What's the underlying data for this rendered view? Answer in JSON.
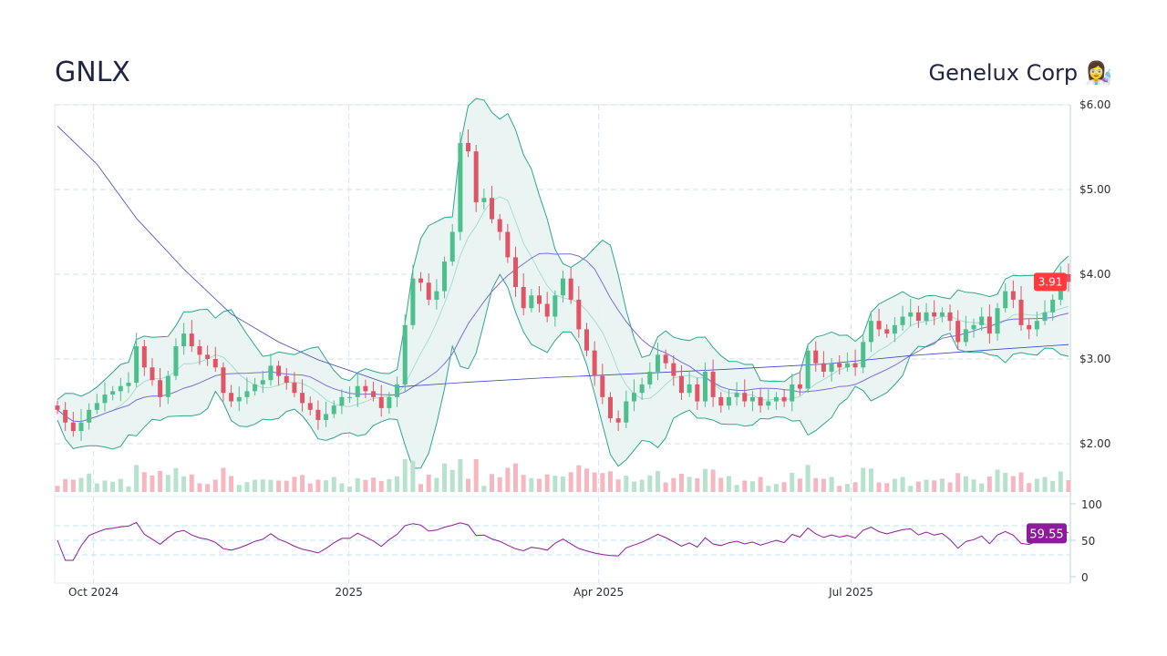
{
  "header": {
    "ticker": "GNLX",
    "company": "Genelux Corp",
    "company_icon": "woman-scientist-emoji",
    "emoji": "👩‍🔬"
  },
  "chart_data": {
    "type": "candlestick",
    "price_axis": {
      "ticks": [
        "$2.00",
        "$3.00",
        "$4.00",
        "$5.00",
        "$6.00"
      ],
      "tick_values": [
        2,
        3,
        4,
        5,
        6
      ],
      "range": [
        1.43,
        6.0
      ]
    },
    "x_axis": {
      "ticks": [
        "Oct 2024",
        "2025",
        "Apr 2025",
        "Jul 2025"
      ],
      "range": [
        "2024-09-17",
        "2025-09-18"
      ],
      "tick_dates": [
        "2024-10-01",
        "2025-01-01",
        "2025-04-01",
        "2025-07-01"
      ]
    },
    "grid": true,
    "closes": [
      2.4,
      2.25,
      2.15,
      2.25,
      2.4,
      2.48,
      2.58,
      2.62,
      2.68,
      2.72,
      3.15,
      2.9,
      2.75,
      2.55,
      2.8,
      3.15,
      3.3,
      3.15,
      3.05,
      3.0,
      2.9,
      2.6,
      2.5,
      2.55,
      2.62,
      2.7,
      2.75,
      2.92,
      2.8,
      2.72,
      2.6,
      2.48,
      2.4,
      2.28,
      2.35,
      2.45,
      2.55,
      2.55,
      2.68,
      2.62,
      2.55,
      2.42,
      2.55,
      2.7,
      3.4,
      3.95,
      3.9,
      3.7,
      3.8,
      4.15,
      4.5,
      5.55,
      5.45,
      4.85,
      4.9,
      4.65,
      4.5,
      4.2,
      3.85,
      3.6,
      3.75,
      3.65,
      3.5,
      3.75,
      3.95,
      3.7,
      3.35,
      3.1,
      2.8,
      2.55,
      2.3,
      2.25,
      2.5,
      2.6,
      2.7,
      2.85,
      3.05,
      2.95,
      2.8,
      2.6,
      2.7,
      2.5,
      2.85,
      2.55,
      2.45,
      2.55,
      2.6,
      2.5,
      2.55,
      2.45,
      2.5,
      2.55,
      2.5,
      2.7,
      2.65,
      3.1,
      2.95,
      2.85,
      2.95,
      2.9,
      2.95,
      2.9,
      3.2,
      3.45,
      3.35,
      3.3,
      3.4,
      3.5,
      3.55,
      3.45,
      3.55,
      3.5,
      3.55,
      3.45,
      3.2,
      3.35,
      3.4,
      3.5,
      3.3,
      3.6,
      3.8,
      3.7,
      3.4,
      3.35,
      3.45,
      3.55,
      3.7,
      4.0,
      3.91
    ],
    "sma200_points": {
      "index": [
        0,
        5,
        10,
        16,
        22,
        28,
        33,
        39,
        43,
        51,
        62,
        74,
        85,
        97,
        108,
        120,
        128
      ],
      "values": [
        5.75,
        5.3,
        4.66,
        4.06,
        3.53,
        3.2,
        2.99,
        2.8,
        2.67,
        2.72,
        2.78,
        2.83,
        2.88,
        2.94,
        3.04,
        3.12,
        3.17
      ]
    },
    "indicators": [
      "Bollinger Bands",
      "SMA 20",
      "SMA 50",
      "SMA 200",
      "Volume",
      "RSI"
    ],
    "last_price": "3.91",
    "rsi": {
      "ticks": [
        "0",
        "50",
        "100"
      ],
      "tick_values": [
        0,
        50,
        100
      ],
      "levels": [
        30,
        50,
        70
      ],
      "last": "59.55"
    },
    "colors": {
      "up": "#26a69a",
      "down": "#ef5350",
      "candle_up": "#4cbf8c",
      "candle_down": "#e05566",
      "bb": "#2fa58e",
      "bb_fill": "#e8f4f2",
      "sma20": "#a8dccf",
      "sma50": "#7b6fd0",
      "sma200": "#3b48c0",
      "rsi": "#8e1a9c",
      "price_label": "#ff3b3b"
    }
  }
}
